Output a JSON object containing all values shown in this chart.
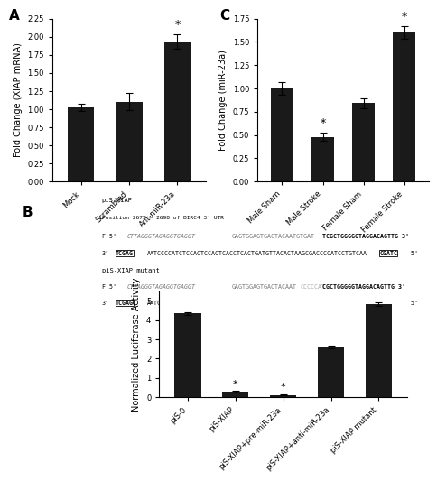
{
  "panel_A": {
    "categories": [
      "Mock",
      "Scrambled",
      "Ant-miR-23a"
    ],
    "values": [
      1.02,
      1.1,
      1.93
    ],
    "errors": [
      0.05,
      0.12,
      0.1
    ],
    "ylabel": "Fold Change (XIAP mRNA)",
    "ylim": [
      0,
      2.25
    ],
    "yticks": [
      0.0,
      0.25,
      0.5,
      0.75,
      1.0,
      1.25,
      1.5,
      1.75,
      2.0,
      2.25
    ],
    "significant": [
      false,
      false,
      true
    ],
    "label": "A"
  },
  "panel_C": {
    "categories": [
      "Male Sham",
      "Male Stroke",
      "Female Sham",
      "Female Stroke"
    ],
    "values": [
      1.0,
      0.48,
      0.84,
      1.6
    ],
    "errors": [
      0.07,
      0.04,
      0.05,
      0.07
    ],
    "ylabel": "Fold Change (miR-23a)",
    "ylim": [
      0,
      1.75
    ],
    "yticks": [
      0.0,
      0.25,
      0.5,
      0.75,
      1.0,
      1.25,
      1.5,
      1.75
    ],
    "significant": [
      false,
      true,
      false,
      true
    ],
    "label": "C"
  },
  "panel_B": {
    "label": "B",
    "categories": [
      "piS-0",
      "piS-XIAP",
      "piS-XIAP+pre-miR-23a",
      "piS-XIAP+anti-miR-23a",
      "piS-XIAP mutant"
    ],
    "values": [
      4.35,
      0.28,
      0.12,
      2.6,
      4.85
    ],
    "errors": [
      0.08,
      0.04,
      0.03,
      0.08,
      0.1
    ],
    "ylabel": "Normalized Luciferase Activity",
    "ylim": [
      0,
      5.5
    ],
    "yticks": [
      0,
      1,
      2,
      3,
      4,
      5
    ],
    "significant": [
      false,
      true,
      true,
      false,
      false
    ]
  },
  "bar_color": "#1a1a1a",
  "bg_color": "#ffffff",
  "fontsize": 7,
  "tick_fontsize": 6
}
